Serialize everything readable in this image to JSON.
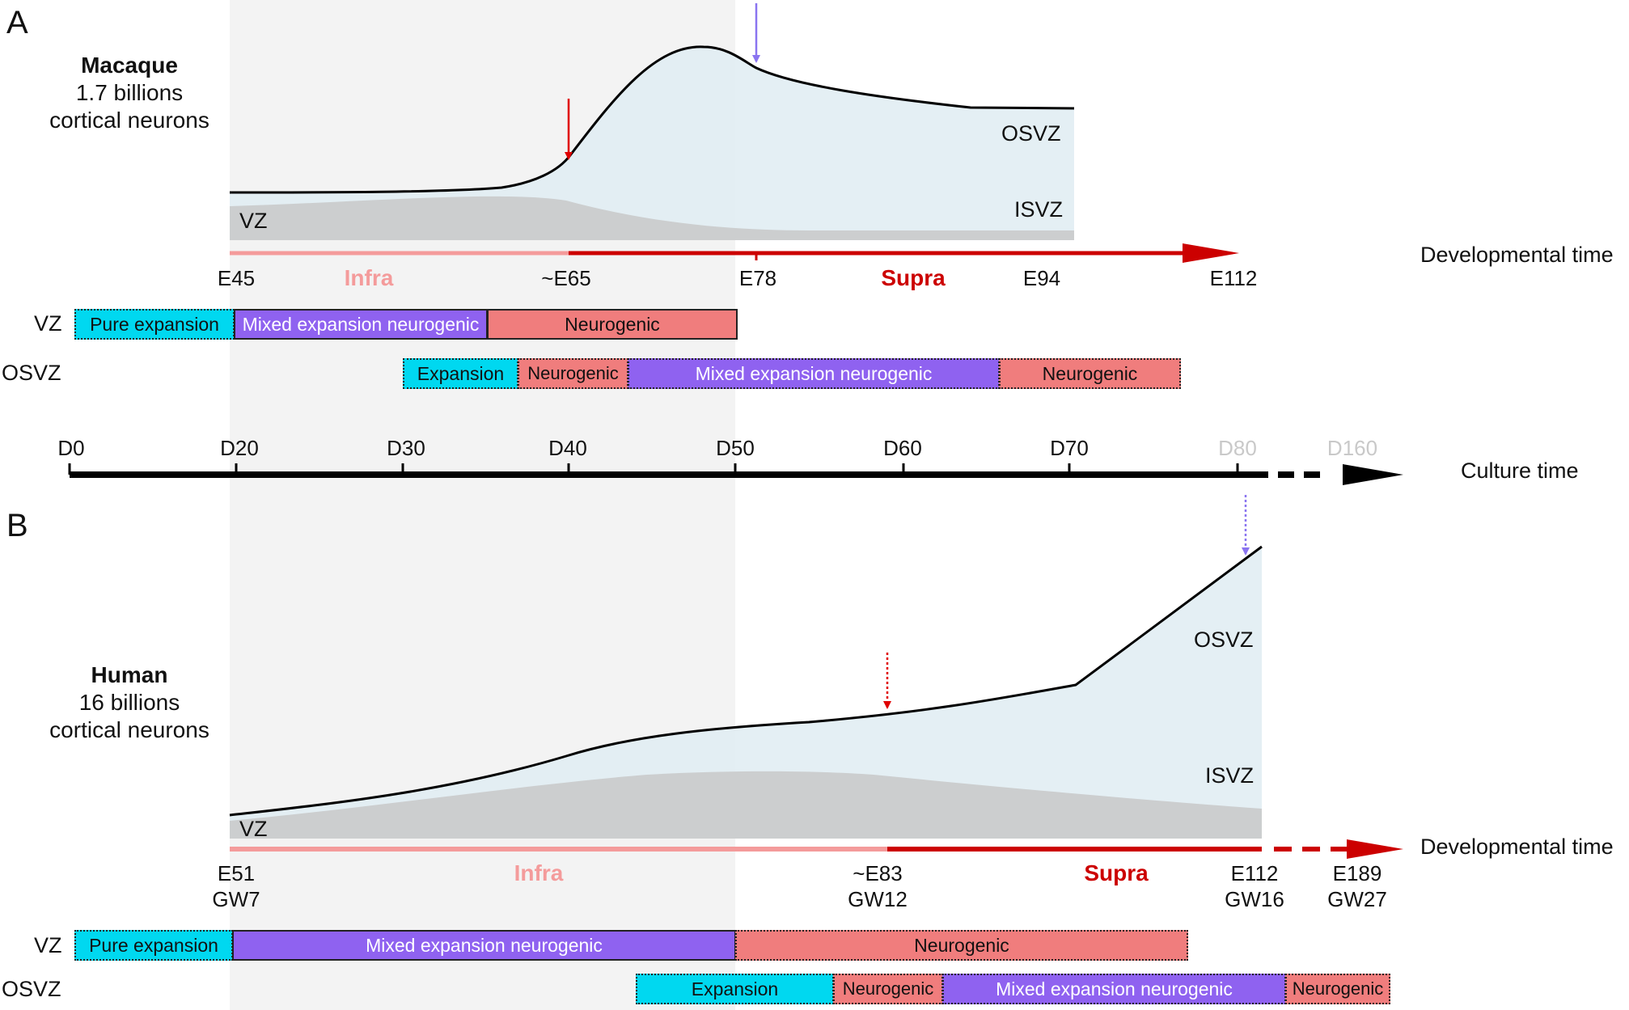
{
  "colors": {
    "expansion": "#00d8f0",
    "mixed": "#8f62f0",
    "neurogenic": "#f07d7d",
    "osvz_fill": "#e1edf3",
    "vz_fill": "#c8c8c8",
    "shade": "#f2f2f2",
    "infra": "#f49b9b",
    "supra": "#cc0000",
    "blue_arrow": "#8a74f0",
    "red_arrow": "#e00000"
  },
  "panel_a": {
    "letter": "A",
    "species": "Macaque",
    "neurons_line1": "1.7 billions",
    "neurons_line2": "cortical neurons",
    "zones": {
      "osvz": "OSVZ",
      "isvz": "ISVZ",
      "vz": "VZ"
    },
    "axis_title": "Developmental time",
    "ticks": [
      "E45",
      "~E65",
      "E78",
      "E94",
      "E112"
    ],
    "phase_infra": "Infra",
    "phase_supra": "Supra",
    "vz_row": {
      "label": "VZ",
      "segments": [
        "Pure expansion",
        "Mixed expansion neurogenic",
        "Neurogenic"
      ]
    },
    "osvz_row": {
      "label": "OSVZ",
      "segments": [
        "Expansion",
        "Neurogenic",
        "Mixed expansion neurogenic",
        "Neurogenic"
      ]
    }
  },
  "culture_axis": {
    "title": "Culture time",
    "ticks": [
      "D0",
      "D20",
      "D30",
      "D40",
      "D50",
      "D60",
      "D70",
      "D80",
      "D160"
    ]
  },
  "panel_b": {
    "letter": "B",
    "species": "Human",
    "neurons_line1": "16 billions",
    "neurons_line2": "cortical neurons",
    "zones": {
      "osvz": "OSVZ",
      "isvz": "ISVZ",
      "vz": "VZ"
    },
    "axis_title": "Developmental time",
    "ticks": [
      {
        "top": "E51",
        "bottom": "GW7"
      },
      {
        "top": "~E83",
        "bottom": "GW12"
      },
      {
        "top": "E112",
        "bottom": "GW16"
      },
      {
        "top": "E189",
        "bottom": "GW27"
      }
    ],
    "phase_infra": "Infra",
    "phase_supra": "Supra",
    "vz_row": {
      "label": "VZ",
      "segments": [
        "Pure expansion",
        "Mixed expansion neurogenic",
        "Neurogenic"
      ]
    },
    "osvz_row": {
      "label": "OSVZ",
      "segments": [
        "Expansion",
        "Neurogenic",
        "Mixed expansion neurogenic",
        "Neurogenic"
      ]
    }
  }
}
